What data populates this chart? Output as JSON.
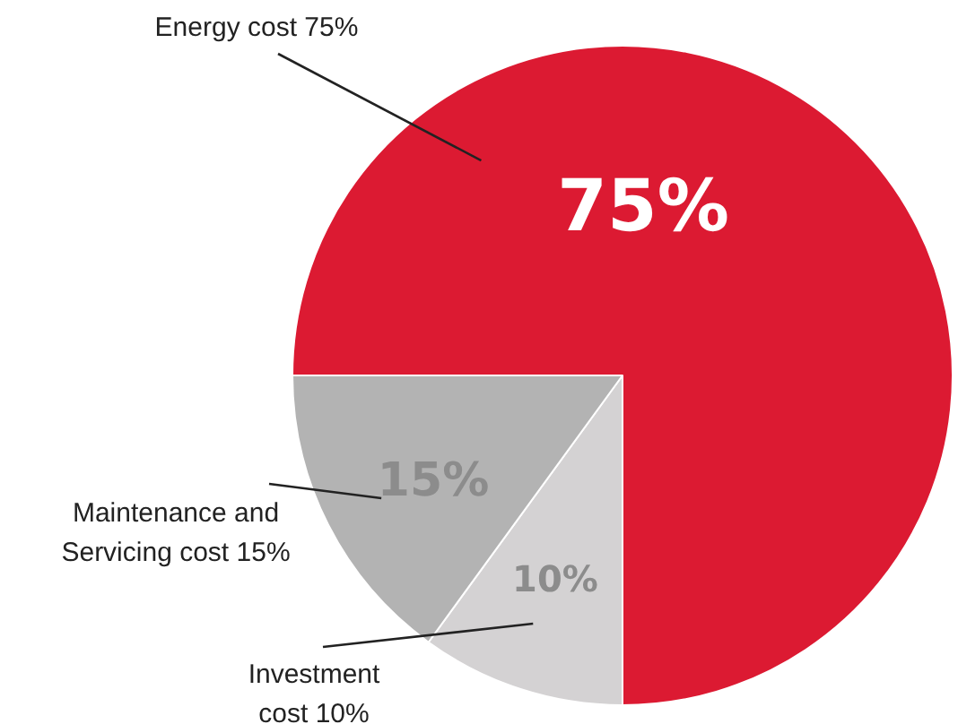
{
  "chart_data": {
    "type": "pie",
    "categories": [
      "Energy cost 75%",
      "Investment cost 10%",
      "Maintenance and Servicing cost 15%"
    ],
    "values": [
      75,
      10,
      15
    ],
    "colors": [
      "#dc1a32",
      "#d4d2d3",
      "#b3b3b3"
    ],
    "value_labels": [
      "75%",
      "10%",
      "15%"
    ],
    "legend": false
  }
}
